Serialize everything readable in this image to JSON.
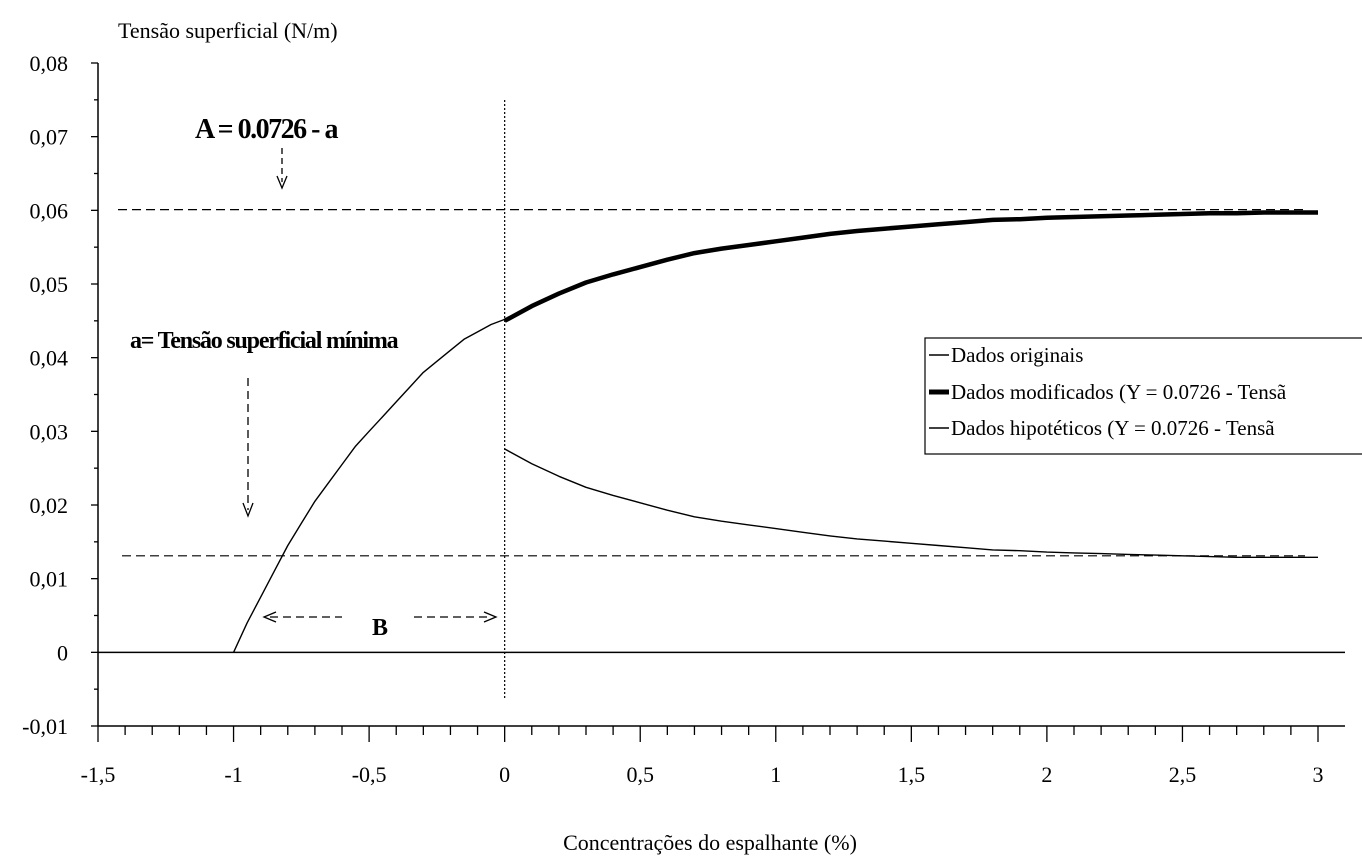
{
  "chart_data": {
    "type": "line",
    "ylabel": "Tensão superficial (N/m)",
    "xlabel": "Concentrações do espalhante (%)",
    "xlim": [
      -1.5,
      3
    ],
    "ylim": [
      -0.01,
      0.08
    ],
    "x_ticks": [
      -1.5,
      -1,
      -0.5,
      0,
      0.5,
      1,
      1.5,
      2,
      2.5,
      3
    ],
    "x_tick_labels": [
      "-1,5",
      "-1",
      "-0,5",
      "0",
      "0,5",
      "1",
      "1,5",
      "2",
      "2,5",
      "3"
    ],
    "y_ticks": [
      -0.01,
      0,
      0.01,
      0.02,
      0.03,
      0.04,
      0.05,
      0.06,
      0.07,
      0.08
    ],
    "y_tick_labels": [
      "-0,01",
      "0",
      "0,01",
      "0,02",
      "0,03",
      "0,04",
      "0,05",
      "0,06",
      "0,07",
      "0,08"
    ],
    "grid": false,
    "legend_position": "right",
    "series": [
      {
        "name": "Dados originais",
        "style": "thin",
        "x": [
          -1,
          -0.95,
          -0.9,
          -0.85,
          -0.8,
          -0.75,
          -0.7,
          -0.65,
          -0.6,
          -0.55,
          -0.5,
          -0.45,
          -0.4,
          -0.35,
          -0.3,
          -0.25,
          -0.2,
          -0.15,
          -0.1,
          -0.05,
          0
        ],
        "y": [
          0,
          0.004,
          0.0075,
          0.011,
          0.0145,
          0.0175,
          0.0205,
          0.023,
          0.0255,
          0.028,
          0.03,
          0.032,
          0.034,
          0.036,
          0.038,
          0.0395,
          0.041,
          0.0425,
          0.0435,
          0.0445,
          0.0452
        ]
      },
      {
        "name": "Dados modificados (Y = 0.0726 - Tensã",
        "style": "thick",
        "x": [
          0,
          0.1,
          0.2,
          0.3,
          0.4,
          0.5,
          0.6,
          0.7,
          0.8,
          0.9,
          1,
          1.1,
          1.2,
          1.3,
          1.4,
          1.5,
          1.6,
          1.7,
          1.8,
          1.9,
          2,
          2.1,
          2.2,
          2.3,
          2.4,
          2.5,
          2.6,
          2.7,
          2.8,
          2.9,
          3
        ],
        "y": [
          0.045,
          0.047,
          0.0487,
          0.0502,
          0.0513,
          0.0523,
          0.0533,
          0.0542,
          0.0548,
          0.0553,
          0.0558,
          0.0563,
          0.0568,
          0.0572,
          0.0575,
          0.0578,
          0.0581,
          0.0584,
          0.0587,
          0.0588,
          0.059,
          0.0591,
          0.0592,
          0.0593,
          0.0594,
          0.0595,
          0.0596,
          0.0596,
          0.0597,
          0.0597,
          0.0597
        ]
      },
      {
        "name": "Dados hipotéticos (Y = 0.0726 - Tensã",
        "style": "thin",
        "x": [
          0,
          0.1,
          0.2,
          0.3,
          0.4,
          0.5,
          0.6,
          0.7,
          0.8,
          0.9,
          1,
          1.1,
          1.2,
          1.3,
          1.4,
          1.5,
          1.6,
          1.7,
          1.8,
          1.9,
          2,
          2.1,
          2.2,
          2.3,
          2.4,
          2.5,
          2.6,
          2.7,
          2.8,
          2.9,
          3
        ],
        "y": [
          0.0276,
          0.0256,
          0.0239,
          0.0224,
          0.0213,
          0.0203,
          0.0193,
          0.0184,
          0.0178,
          0.0173,
          0.0168,
          0.0163,
          0.0158,
          0.0154,
          0.0151,
          0.0148,
          0.0145,
          0.0142,
          0.0139,
          0.0138,
          0.0136,
          0.0135,
          0.0134,
          0.0133,
          0.0132,
          0.0131,
          0.013,
          0.0129,
          0.0129,
          0.0129,
          0.0129
        ]
      }
    ],
    "reference_lines": {
      "upper_y": 0.0601,
      "lower_y": 0.0131,
      "vertical_x": 0
    },
    "annotations": {
      "A_label": "A = 0.0726 - a",
      "a_label": "a= Tensão superficial mínima",
      "B_label": "B"
    }
  }
}
